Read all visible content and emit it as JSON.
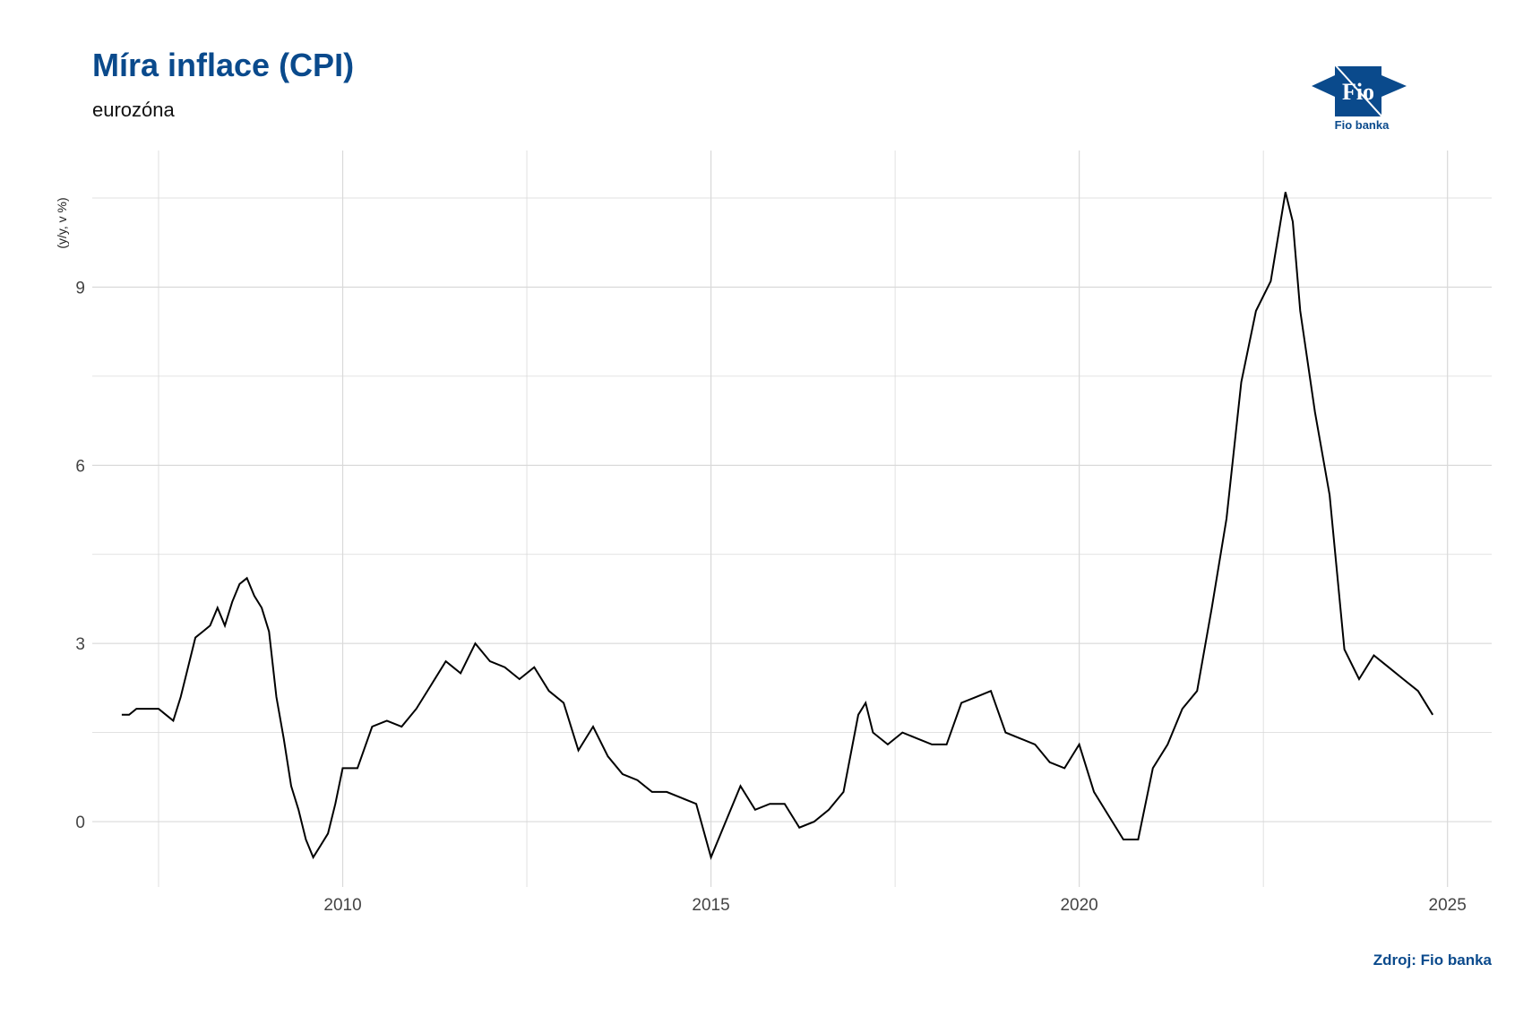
{
  "title": "Míra inflace (CPI)",
  "subtitle": "eurozóna",
  "logo": {
    "mark": "Fio",
    "text": "Fio banka",
    "color": "#0a4a8c"
  },
  "source": "Zdroj: Fio banka",
  "chart_data": {
    "type": "line",
    "title": "Míra inflace (CPI)",
    "subtitle": "eurozóna",
    "ylabel": "(y/y, v %)",
    "xlabel": "",
    "x_ticks": [
      2010,
      2015,
      2020,
      2025
    ],
    "y_ticks": [
      0,
      3,
      6,
      9
    ],
    "xlim": [
      2006.6,
      2025.6
    ],
    "ylim": [
      -1.1,
      11.3
    ],
    "grid": true,
    "line_color": "#000000",
    "series": [
      {
        "x": [
          2007.0,
          2007.1,
          2007.2,
          2007.3,
          2007.4,
          2007.5,
          2007.6,
          2007.7,
          2007.8,
          2007.9,
          2008.0,
          2008.1,
          2008.2,
          2008.3,
          2008.4,
          2008.5,
          2008.6,
          2008.7,
          2008.8,
          2008.9,
          2009.0,
          2009.1,
          2009.2,
          2009.3,
          2009.4,
          2009.5,
          2009.6,
          2009.7,
          2009.8,
          2009.9,
          2010.0,
          2010.2,
          2010.4,
          2010.6,
          2010.8,
          2011.0,
          2011.2,
          2011.4,
          2011.6,
          2011.8,
          2012.0,
          2012.2,
          2012.4,
          2012.6,
          2012.8,
          2013.0,
          2013.2,
          2013.4,
          2013.6,
          2013.8,
          2014.0,
          2014.2,
          2014.4,
          2014.6,
          2014.8,
          2015.0,
          2015.2,
          2015.4,
          2015.6,
          2015.8,
          2016.0,
          2016.2,
          2016.4,
          2016.6,
          2016.8,
          2017.0,
          2017.1,
          2017.2,
          2017.4,
          2017.6,
          2017.8,
          2018.0,
          2018.2,
          2018.4,
          2018.6,
          2018.8,
          2019.0,
          2019.2,
          2019.4,
          2019.6,
          2019.8,
          2020.0,
          2020.2,
          2020.4,
          2020.6,
          2020.8,
          2021.0,
          2021.2,
          2021.4,
          2021.6,
          2021.8,
          2022.0,
          2022.2,
          2022.4,
          2022.6,
          2022.8,
          2022.9,
          2023.0,
          2023.2,
          2023.4,
          2023.6,
          2023.8,
          2024.0,
          2024.2,
          2024.4,
          2024.6,
          2024.8
        ],
        "y": [
          1.8,
          1.8,
          1.9,
          1.9,
          1.9,
          1.9,
          1.8,
          1.7,
          2.1,
          2.6,
          3.1,
          3.2,
          3.3,
          3.6,
          3.3,
          3.7,
          4.0,
          4.1,
          3.8,
          3.6,
          3.2,
          2.1,
          1.4,
          0.6,
          0.2,
          -0.3,
          -0.6,
          -0.4,
          -0.2,
          0.3,
          0.9,
          0.9,
          1.6,
          1.7,
          1.6,
          1.9,
          2.3,
          2.7,
          2.5,
          3.0,
          2.7,
          2.6,
          2.4,
          2.6,
          2.2,
          2.0,
          1.2,
          1.6,
          1.1,
          0.8,
          0.7,
          0.5,
          0.5,
          0.4,
          0.3,
          -0.6,
          0.0,
          0.6,
          0.2,
          0.3,
          0.3,
          -0.1,
          0.0,
          0.2,
          0.5,
          1.8,
          2.0,
          1.5,
          1.3,
          1.5,
          1.4,
          1.3,
          1.3,
          2.0,
          2.1,
          2.2,
          1.5,
          1.4,
          1.3,
          1.0,
          0.9,
          1.3,
          0.5,
          0.1,
          -0.3,
          -0.3,
          0.9,
          1.3,
          1.9,
          2.2,
          3.6,
          5.1,
          7.4,
          8.6,
          9.1,
          10.6,
          10.1,
          8.6,
          6.9,
          5.5,
          2.9,
          2.4,
          2.8,
          2.6,
          2.4,
          2.2,
          1.8
        ]
      }
    ]
  }
}
